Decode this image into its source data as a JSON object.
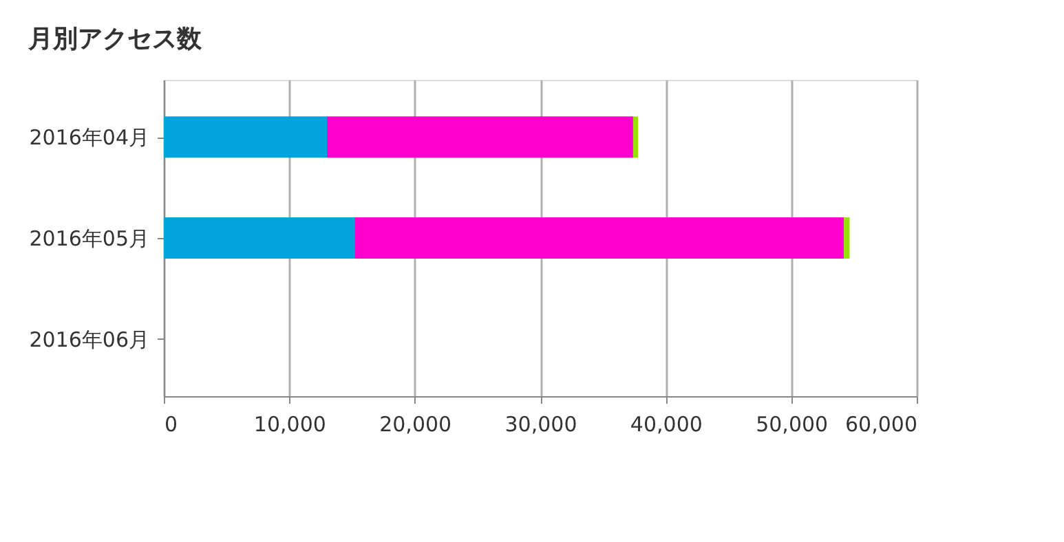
{
  "chart_data": {
    "type": "bar",
    "orientation": "horizontal",
    "stacked": true,
    "title": "月別アクセス数",
    "categories": [
      "2016年04月",
      "2016年05月",
      "2016年06月"
    ],
    "series": [
      {
        "color": "#00a3dc",
        "values": [
          13000,
          15200,
          null
        ]
      },
      {
        "color": "#ff00cc",
        "values": [
          24400,
          39000,
          null
        ]
      },
      {
        "color": "#99e000",
        "values": [
          400,
          450,
          null
        ]
      }
    ],
    "xlim": [
      0,
      60000
    ],
    "xticks": [
      {
        "value": 0,
        "label": "0"
      },
      {
        "value": 10000,
        "label": "10,000"
      },
      {
        "value": 20000,
        "label": "20,000"
      },
      {
        "value": 30000,
        "label": "30,000"
      },
      {
        "value": 40000,
        "label": "40,000"
      },
      {
        "value": 50000,
        "label": "50,000"
      },
      {
        "value": 60000,
        "label": "60,000"
      }
    ],
    "grid": "x",
    "legend": false
  }
}
